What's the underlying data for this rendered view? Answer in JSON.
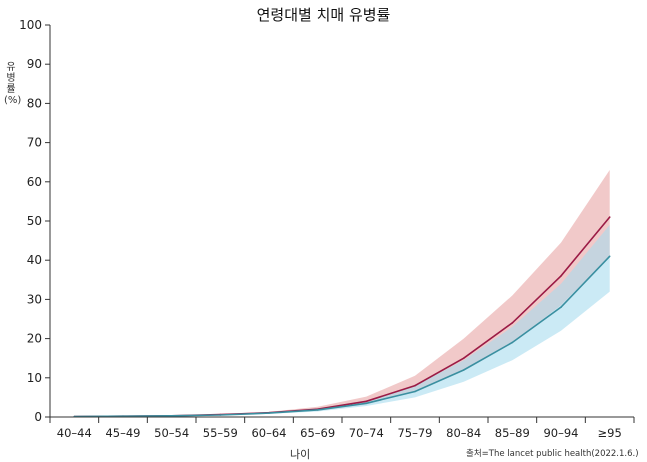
{
  "chart_data": {
    "type": "line",
    "title": "연령대별 치매 유병률",
    "ylabel": "유병률(%)",
    "xlabel": "나이",
    "source": "출처=The lancet public health(2022.1.6.)",
    "categories": [
      "40–44",
      "45–49",
      "50–54",
      "55–59",
      "60–64",
      "65–69",
      "70–74",
      "75–79",
      "80–84",
      "85–89",
      "90–94",
      "≥95"
    ],
    "yticks": [
      0,
      10,
      20,
      30,
      40,
      50,
      60,
      70,
      80,
      90,
      100
    ],
    "ylim": [
      0,
      100
    ],
    "grid": false,
    "series": [
      {
        "color": "#9b1b45",
        "band_color": "#e8a5a5",
        "values": [
          0.1,
          0.2,
          0.3,
          0.6,
          1.1,
          2.0,
          4.0,
          8.0,
          15.0,
          24.0,
          36.0,
          51.0
        ],
        "upper": [
          0.1,
          0.2,
          0.4,
          0.8,
          1.3,
          2.6,
          5.2,
          10.5,
          20.0,
          31.0,
          44.5,
          63.0
        ],
        "lower": [
          0.0,
          0.1,
          0.2,
          0.5,
          0.9,
          1.6,
          3.2,
          6.5,
          12.0,
          19.0,
          28.5,
          41.0
        ]
      },
      {
        "color": "#3a8fa0",
        "band_color": "#a8dcef",
        "values": [
          0.1,
          0.2,
          0.3,
          0.5,
          1.0,
          1.8,
          3.5,
          6.5,
          12.0,
          19.0,
          28.0,
          41.0
        ],
        "upper": [
          0.1,
          0.2,
          0.4,
          0.7,
          1.2,
          2.2,
          4.2,
          8.0,
          14.5,
          23.0,
          34.0,
          49.0
        ],
        "lower": [
          0.0,
          0.1,
          0.2,
          0.4,
          0.8,
          1.4,
          2.8,
          5.0,
          9.0,
          14.5,
          22.0,
          32.0
        ]
      }
    ]
  }
}
